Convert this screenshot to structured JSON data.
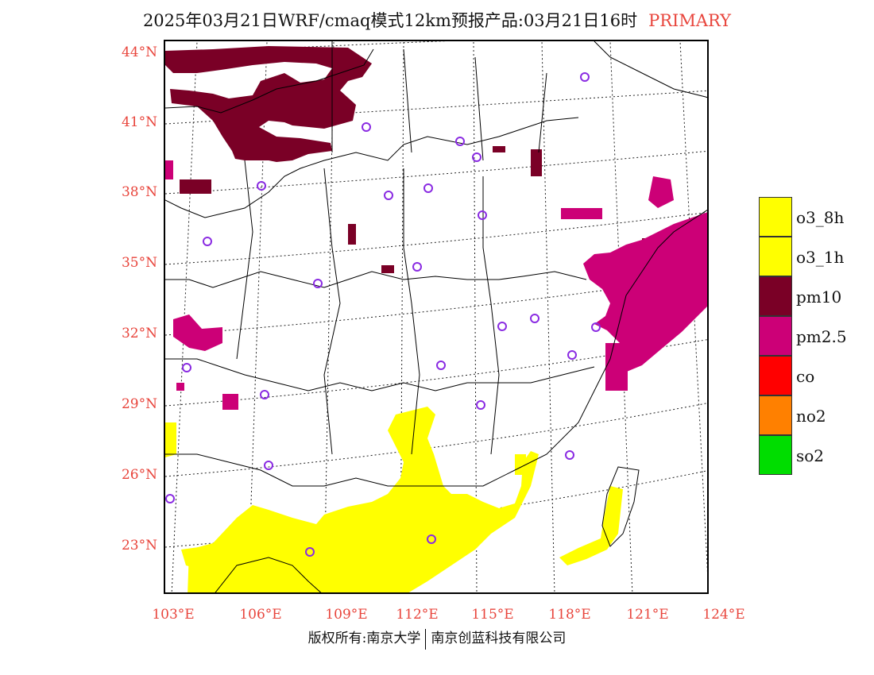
{
  "title": {
    "main": "2025年03月21日WRF/cmaq模式12km预报产品:03月21日16时",
    "tag": "PRIMARY"
  },
  "colors": {
    "label_red": "#e8453c",
    "o3_8h": "#ffff00",
    "o3_1h": "#ffff00",
    "pm10": "#7a0026",
    "pm2_5": "#cc0077",
    "co": "#ff0000",
    "no2": "#ff8000",
    "so2": "#00dd00",
    "station": "#8a2be2"
  },
  "lat_labels": [
    "44°N",
    "41°N",
    "38°N",
    "35°N",
    "32°N",
    "29°N",
    "26°N",
    "23°N"
  ],
  "lon_labels": [
    "103°E",
    "106°E",
    "109°E",
    "112°E",
    "115°E",
    "118°E",
    "121°E",
    "124°E"
  ],
  "legend": [
    {
      "label": "o3_8h",
      "color": "#ffff00"
    },
    {
      "label": "o3_1h",
      "color": "#ffff00"
    },
    {
      "label": "pm10",
      "color": "#7a0026"
    },
    {
      "label": "pm2.5",
      "color": "#cc0077"
    },
    {
      "label": "co",
      "color": "#ff0000"
    },
    {
      "label": "no2",
      "color": "#ff8000"
    },
    {
      "label": "so2",
      "color": "#00dd00"
    }
  ],
  "footer": {
    "left": "版权所有:南京大学",
    "right": "南京创蓝科技有限公司"
  }
}
